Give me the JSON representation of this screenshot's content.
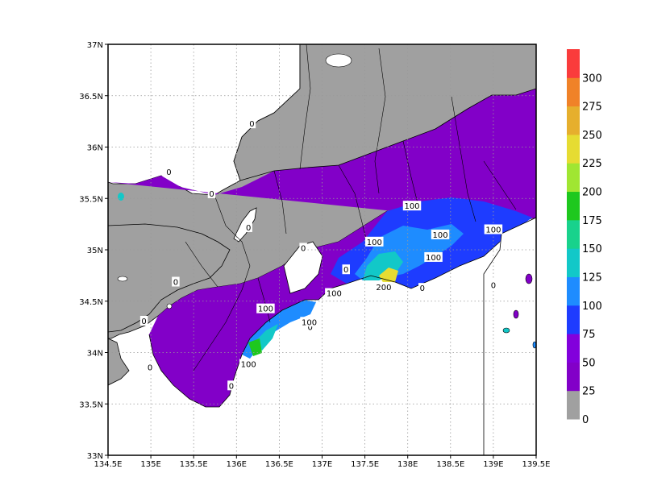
{
  "map": {
    "lon_range": [
      134.5,
      139.5
    ],
    "lat_range": [
      33,
      37
    ],
    "grid": true,
    "land_color": "#a0a0a0",
    "sea_color": "#ffffff",
    "x_ticks": [
      "134.5E",
      "135E",
      "135.5E",
      "136E",
      "136.5E",
      "137E",
      "137.5E",
      "138E",
      "138.5E",
      "139E",
      "139.5E"
    ],
    "y_ticks": [
      "33N",
      "33.5N",
      "34N",
      "34.5N",
      "35N",
      "35.5N",
      "36N",
      "36.5N",
      "37N"
    ]
  },
  "contour_labels": [
    {
      "text": "0",
      "lon": 136.18,
      "lat": 36.23
    },
    {
      "text": "0",
      "lon": 135.21,
      "lat": 35.76
    },
    {
      "text": "0",
      "lon": 135.71,
      "lat": 35.55
    },
    {
      "text": "0",
      "lon": 136.14,
      "lat": 35.22
    },
    {
      "text": "0",
      "lon": 136.78,
      "lat": 35.02
    },
    {
      "text": "0",
      "lon": 137.28,
      "lat": 34.81
    },
    {
      "text": "0",
      "lon": 135.29,
      "lat": 34.69
    },
    {
      "text": "0",
      "lon": 134.92,
      "lat": 34.31
    },
    {
      "text": "0",
      "lon": 134.99,
      "lat": 33.86
    },
    {
      "text": "0",
      "lon": 136.86,
      "lat": 34.25
    },
    {
      "text": "0",
      "lon": 135.94,
      "lat": 33.68
    },
    {
      "text": "0",
      "lon": 138.17,
      "lat": 34.63
    },
    {
      "text": "0",
      "lon": 139.0,
      "lat": 34.66
    },
    {
      "text": "100",
      "lon": 138.05,
      "lat": 35.43
    },
    {
      "text": "100",
      "lon": 138.38,
      "lat": 35.15
    },
    {
      "text": "100",
      "lon": 137.61,
      "lat": 35.08
    },
    {
      "text": "100",
      "lon": 139.0,
      "lat": 35.2
    },
    {
      "text": "100",
      "lon": 138.3,
      "lat": 34.93
    },
    {
      "text": "100",
      "lon": 137.14,
      "lat": 34.58
    },
    {
      "text": "100",
      "lon": 136.34,
      "lat": 34.43
    },
    {
      "text": "100",
      "lon": 136.85,
      "lat": 34.3
    },
    {
      "text": "100",
      "lon": 136.14,
      "lat": 33.89
    },
    {
      "text": "200",
      "lon": 137.72,
      "lat": 34.64
    }
  ],
  "legend": {
    "labels": [
      "0",
      "25",
      "50",
      "75",
      "100",
      "125",
      "150",
      "175",
      "200",
      "225",
      "250",
      "275",
      "300"
    ],
    "colors": [
      "#a0a0a0",
      "#8200c8",
      "#8200dc",
      "#1e3cff",
      "#1e8cff",
      "#12c8c8",
      "#18d28c",
      "#1ec81e",
      "#a0e632",
      "#e6dc32",
      "#e6af2d",
      "#f08228",
      "#fa3c3c"
    ]
  }
}
